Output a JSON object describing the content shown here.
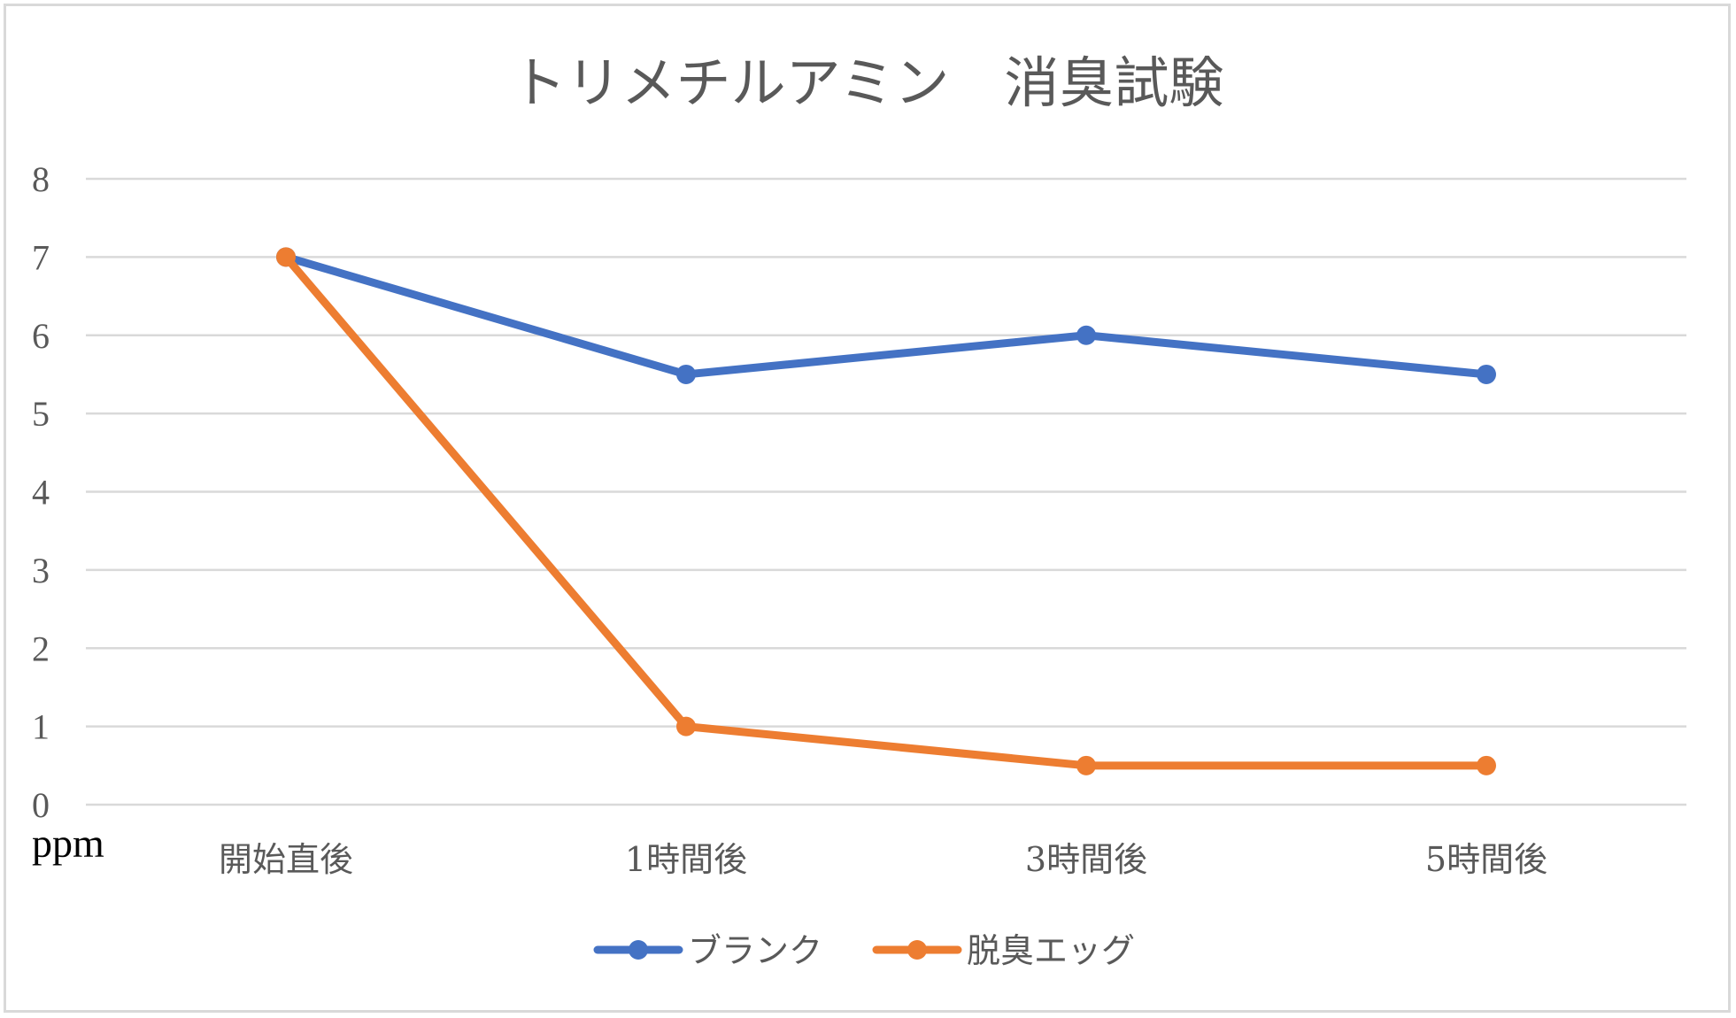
{
  "chart_data": {
    "type": "line",
    "title": "トリメチルアミン　消臭試験",
    "xlabel": "",
    "ylabel": "ppm",
    "ylim": [
      0,
      8
    ],
    "yticks": [
      "0",
      "1",
      "2",
      "3",
      "4",
      "5",
      "6",
      "7",
      "8"
    ],
    "categories": [
      "開始直後",
      "1時間後",
      "3時間後",
      "5時間後"
    ],
    "grid": true,
    "legend_position": "bottom",
    "series": [
      {
        "name": "ブランク",
        "values": [
          7,
          5.5,
          6,
          5.5
        ],
        "color": "#4472c4"
      },
      {
        "name": "脱臭エッグ",
        "values": [
          7,
          1,
          0.5,
          0.5
        ],
        "color": "#ed7d31"
      }
    ]
  }
}
